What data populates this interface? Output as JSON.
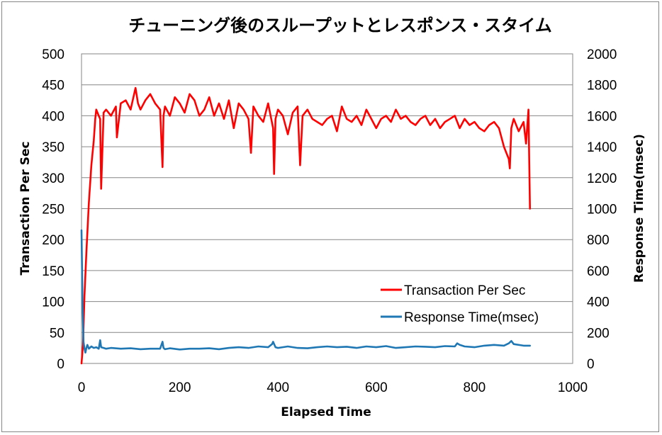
{
  "chart_data": {
    "type": "line",
    "title": "チューニング後のスループットとレスポンス・スタイム",
    "xlabel": "Elapsed Time",
    "ylabel": "Transaction Per Sec",
    "y2label": "Response Time(msec)",
    "xlim": [
      0,
      1000
    ],
    "ylim": [
      0,
      500
    ],
    "y2lim": [
      0,
      2000
    ],
    "x_ticks": [
      "0",
      "200",
      "400",
      "600",
      "800",
      "1000"
    ],
    "y_ticks": [
      "0",
      "50",
      "100",
      "150",
      "200",
      "250",
      "300",
      "350",
      "400",
      "450",
      "500"
    ],
    "y2_ticks": [
      "0",
      "200",
      "400",
      "600",
      "800",
      "1000",
      "1200",
      "1400",
      "1600",
      "1800",
      "2000"
    ],
    "grid": true,
    "legend_position": "bottom-right",
    "series": [
      {
        "name": "Transaction Per Sec",
        "axis": "left",
        "color": "#ff0000",
        "x": [
          0,
          3,
          6,
          10,
          15,
          20,
          25,
          28,
          30,
          35,
          38,
          40,
          45,
          50,
          60,
          70,
          72,
          80,
          90,
          100,
          110,
          115,
          120,
          130,
          140,
          150,
          160,
          165,
          167,
          170,
          180,
          190,
          200,
          210,
          220,
          230,
          240,
          250,
          260,
          270,
          280,
          290,
          300,
          310,
          320,
          330,
          340,
          345,
          350,
          360,
          370,
          380,
          390,
          392,
          395,
          400,
          410,
          420,
          430,
          440,
          445,
          450,
          460,
          470,
          480,
          490,
          500,
          510,
          520,
          530,
          540,
          550,
          560,
          570,
          580,
          590,
          600,
          610,
          620,
          630,
          640,
          650,
          660,
          670,
          680,
          690,
          700,
          710,
          720,
          730,
          740,
          750,
          760,
          770,
          780,
          790,
          800,
          810,
          820,
          830,
          840,
          850,
          860,
          870,
          872,
          875,
          880,
          890,
          900,
          905,
          910,
          913
        ],
        "values": [
          0,
          30,
          110,
          180,
          260,
          320,
          360,
          395,
          410,
          400,
          395,
          282,
          405,
          410,
          400,
          415,
          365,
          420,
          425,
          410,
          445,
          420,
          410,
          425,
          435,
          420,
          410,
          317,
          400,
          415,
          400,
          430,
          420,
          405,
          435,
          425,
          400,
          410,
          430,
          400,
          420,
          395,
          425,
          380,
          420,
          410,
          395,
          340,
          415,
          400,
          390,
          420,
          380,
          306,
          395,
          410,
          400,
          370,
          405,
          415,
          320,
          400,
          410,
          395,
          390,
          385,
          395,
          400,
          375,
          415,
          395,
          390,
          400,
          385,
          410,
          395,
          380,
          395,
          400,
          390,
          410,
          395,
          400,
          390,
          385,
          395,
          400,
          385,
          395,
          380,
          390,
          395,
          400,
          380,
          395,
          385,
          390,
          380,
          375,
          385,
          390,
          380,
          350,
          330,
          315,
          380,
          395,
          375,
          390,
          355,
          410,
          250
        ]
      },
      {
        "name": "Response Time(msec)",
        "axis": "right",
        "color": "#1f77b4",
        "x": [
          0,
          2,
          4,
          6,
          8,
          10,
          12,
          15,
          20,
          25,
          30,
          35,
          38,
          40,
          45,
          50,
          60,
          80,
          100,
          120,
          140,
          160,
          165,
          167,
          170,
          180,
          200,
          220,
          240,
          260,
          280,
          300,
          320,
          340,
          360,
          380,
          388,
          390,
          395,
          400,
          420,
          440,
          460,
          480,
          500,
          520,
          540,
          560,
          580,
          600,
          620,
          640,
          660,
          680,
          700,
          720,
          740,
          760,
          765,
          770,
          780,
          800,
          820,
          840,
          860,
          870,
          875,
          880,
          900,
          913
        ],
        "values": [
          860,
          400,
          140,
          95,
          70,
          100,
          120,
          95,
          110,
          100,
          105,
          95,
          150,
          105,
          100,
          95,
          100,
          95,
          98,
          92,
          95,
          95,
          140,
          100,
          92,
          98,
          90,
          95,
          95,
          98,
          92,
          100,
          105,
          100,
          110,
          105,
          125,
          140,
          105,
          100,
          110,
          100,
          98,
          105,
          110,
          105,
          108,
          100,
          110,
          105,
          112,
          100,
          105,
          110,
          108,
          105,
          112,
          110,
          130,
          120,
          110,
          105,
          115,
          120,
          115,
          130,
          145,
          125,
          115,
          115
        ]
      }
    ]
  },
  "legend": {
    "items": [
      {
        "label": "Transaction Per Sec",
        "color": "#ff0000"
      },
      {
        "label": "Response Time(msec)",
        "color": "#1f77b4"
      }
    ]
  }
}
